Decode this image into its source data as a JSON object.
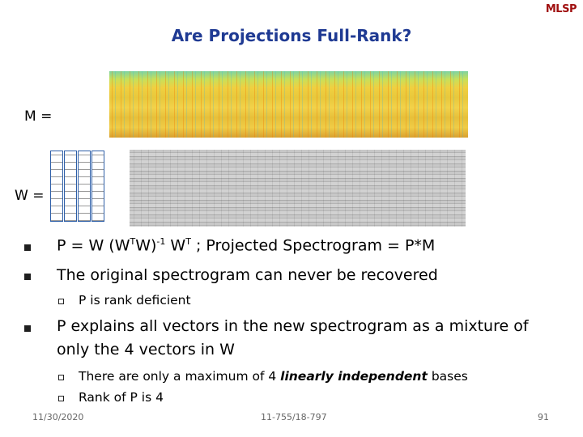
{
  "header": {
    "title": "Are Projections Full-Rank?",
    "logo": "MLSP"
  },
  "labels": {
    "m": "M =",
    "w": "W ="
  },
  "bullets": [
    {
      "parts": [
        "P = W (W",
        "T",
        "W)",
        "-1",
        " W",
        "T",
        " ; Projected Spectrogram = P*M"
      ]
    },
    {
      "text": "The original spectrogram can never be recovered",
      "sub": [
        "P is rank deficient"
      ]
    },
    {
      "text": [
        "P explains all vectors in the new spectrogram as a mixture of",
        "only the 4 vectors in W"
      ],
      "sub": [
        [
          "There are only a maximum of 4 ",
          "linearly independent",
          " bases"
        ],
        "Rank of P is 4"
      ]
    }
  ],
  "footer": {
    "date": "11/30/2020",
    "course": "11-755/18-797",
    "page": "91"
  }
}
